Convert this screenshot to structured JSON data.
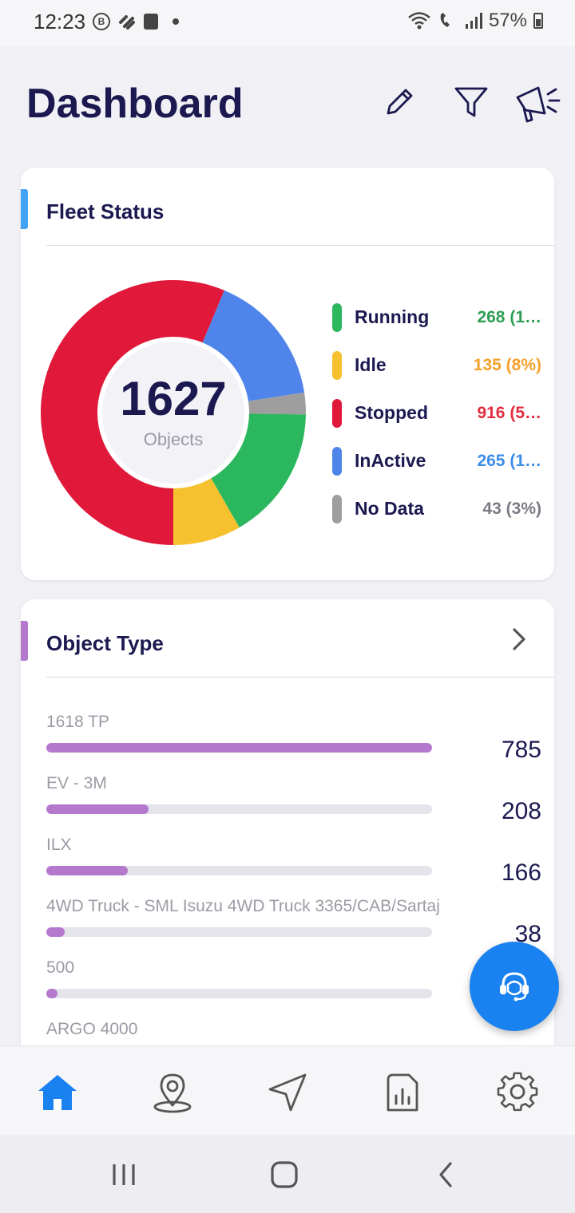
{
  "status_bar": {
    "time": "12:23",
    "battery": "57%",
    "b_badge": "B"
  },
  "header": {
    "title": "Dashboard"
  },
  "fleet": {
    "title": "Fleet Status",
    "total": "1627",
    "total_label": "Objects",
    "items": [
      {
        "label": "Running",
        "value": "268 (1…",
        "count": 268,
        "color": "#2bb75e",
        "text_color": "#2e9e55"
      },
      {
        "label": "Idle",
        "value": "135 (8%)",
        "count": 135,
        "color": "#f6c12f",
        "text_color": "#f5a12b"
      },
      {
        "label": "Stopped",
        "value": "916 (5…",
        "count": 916,
        "color": "#e0193a",
        "text_color": "#e22d3f"
      },
      {
        "label": "InActive",
        "value": "265 (1…",
        "count": 265,
        "color": "#4f85ea",
        "text_color": "#3d8de8"
      },
      {
        "label": "No Data",
        "value": "43 (3%)",
        "count": 43,
        "color": "#9e9e9e",
        "text_color": "#7b7b85"
      }
    ]
  },
  "object_type": {
    "title": "Object Type",
    "max": 785,
    "items": [
      {
        "label": "1618 TP",
        "count": "785",
        "value": 785
      },
      {
        "label": "EV - 3M",
        "count": "208",
        "value": 208
      },
      {
        "label": "ILX",
        "count": "166",
        "value": 166
      },
      {
        "label": "4WD Truck - SML Isuzu 4WD Truck 3365/CAB/Sartaj",
        "count": "38",
        "value": 38
      },
      {
        "label": "500",
        "count": "",
        "value": 22
      },
      {
        "label": "ARGO 4000",
        "count": "",
        "value": 0
      }
    ]
  },
  "colors": {
    "accent_blue": "#2196f3",
    "accent_purple": "#b478cc",
    "primary_text": "#1b1950",
    "fab": "#1a82f0",
    "nav_active": "#1a82f0"
  },
  "nav": [
    "home-icon",
    "location-pin-icon",
    "navigation-arrow-icon",
    "report-icon",
    "settings-gear-icon"
  ]
}
